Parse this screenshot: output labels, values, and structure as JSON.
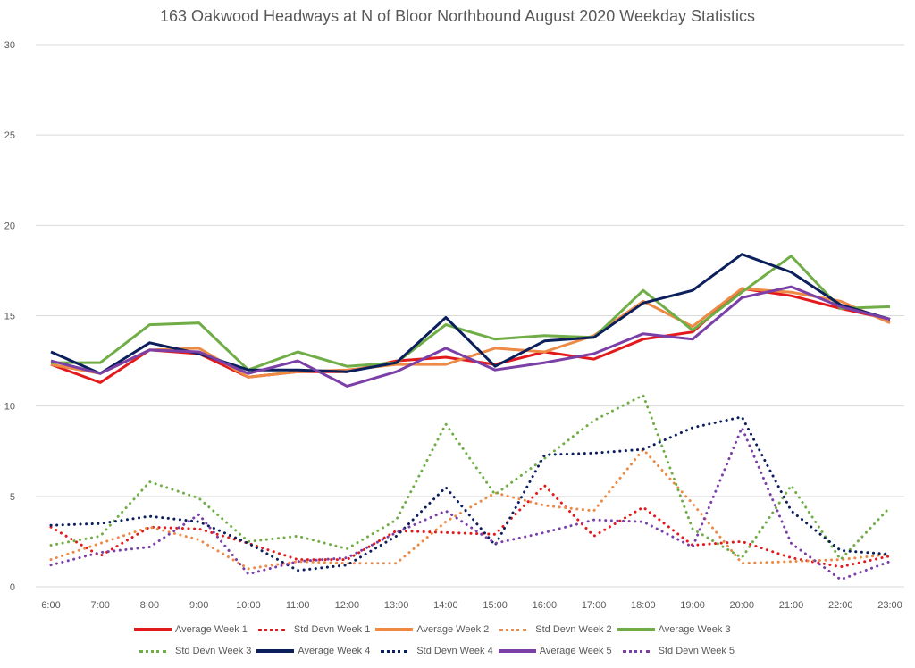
{
  "chart_data": {
    "type": "line",
    "title": "163 Oakwood Headways at N of Bloor Northbound August 2020 Weekday Statistics",
    "xlabel": "",
    "ylabel": "",
    "ylim": [
      0,
      30
    ],
    "yticks": [
      "0",
      "5",
      "10",
      "15",
      "20",
      "25",
      "30"
    ],
    "grid": true,
    "legend_position": "bottom",
    "categories": [
      "6:00",
      "7:00",
      "8:00",
      "9:00",
      "10:00",
      "11:00",
      "12:00",
      "13:00",
      "14:00",
      "15:00",
      "16:00",
      "17:00",
      "18:00",
      "19:00",
      "20:00",
      "21:00",
      "22:00",
      "23:00"
    ],
    "series": [
      {
        "name": "Average Week 1",
        "style": "solid",
        "color": "#e31a1c",
        "values": [
          12.3,
          11.3,
          13.1,
          12.9,
          11.6,
          11.9,
          11.9,
          12.5,
          12.7,
          12.3,
          13.0,
          12.6,
          13.7,
          14.1,
          16.5,
          16.1,
          15.4,
          14.8
        ]
      },
      {
        "name": "Std Devn Week 1",
        "style": "dotted",
        "color": "#e31a1c",
        "values": [
          3.3,
          1.7,
          3.3,
          3.2,
          2.4,
          1.5,
          1.5,
          3.1,
          3.0,
          2.9,
          5.6,
          2.8,
          4.4,
          2.3,
          2.5,
          1.6,
          1.1,
          1.7
        ]
      },
      {
        "name": "Average Week 2",
        "style": "solid",
        "color": "#ed8a45",
        "values": [
          12.3,
          11.8,
          13.1,
          13.2,
          11.6,
          11.9,
          12.0,
          12.3,
          12.3,
          13.2,
          13.0,
          13.9,
          15.8,
          14.4,
          16.5,
          16.3,
          15.8,
          14.6
        ]
      },
      {
        "name": "Std Devn Week 2",
        "style": "dotted",
        "color": "#ed8a45",
        "values": [
          1.5,
          2.4,
          3.3,
          2.6,
          1.0,
          1.4,
          1.3,
          1.3,
          3.6,
          5.2,
          4.5,
          4.2,
          7.6,
          4.6,
          1.3,
          1.4,
          1.5,
          1.8
        ]
      },
      {
        "name": "Average Week 3",
        "style": "solid",
        "color": "#70ad47",
        "values": [
          12.4,
          12.4,
          14.5,
          14.6,
          12.0,
          13.0,
          12.2,
          12.4,
          14.5,
          13.7,
          13.9,
          13.8,
          16.4,
          14.2,
          16.3,
          18.3,
          15.4,
          15.5
        ]
      },
      {
        "name": "Std Devn Week 3",
        "style": "dotted",
        "color": "#70ad47",
        "values": [
          2.3,
          2.8,
          5.8,
          4.9,
          2.5,
          2.8,
          2.1,
          3.7,
          9.0,
          5.1,
          7.1,
          9.2,
          10.6,
          3.2,
          1.6,
          5.6,
          1.5,
          4.4
        ]
      },
      {
        "name": "Average Week 4",
        "style": "solid",
        "color": "#0b1f5c",
        "values": [
          13.0,
          11.8,
          13.5,
          12.9,
          12.0,
          12.0,
          11.9,
          12.4,
          14.9,
          12.2,
          13.6,
          13.8,
          15.7,
          16.4,
          18.4,
          17.4,
          15.6,
          14.8
        ]
      },
      {
        "name": "Std Devn Week 4",
        "style": "dotted",
        "color": "#0b1f5c",
        "values": [
          3.4,
          3.5,
          3.9,
          3.6,
          2.4,
          0.9,
          1.2,
          2.8,
          5.5,
          2.3,
          7.3,
          7.4,
          7.6,
          8.8,
          9.4,
          4.2,
          2.0,
          1.8
        ]
      },
      {
        "name": "Average Week 5",
        "style": "solid",
        "color": "#7b3fa8",
        "values": [
          12.5,
          11.8,
          13.1,
          13.0,
          11.8,
          12.5,
          11.1,
          11.9,
          13.2,
          12.0,
          12.4,
          12.9,
          14.0,
          13.7,
          16.0,
          16.6,
          15.5,
          14.8
        ]
      },
      {
        "name": "Std Devn Week 5",
        "style": "dotted",
        "color": "#7b3fa8",
        "values": [
          1.2,
          1.9,
          2.2,
          4.0,
          0.7,
          1.4,
          1.6,
          3.0,
          4.2,
          2.4,
          3.0,
          3.7,
          3.6,
          2.2,
          8.8,
          2.4,
          0.4,
          1.4
        ]
      }
    ]
  }
}
